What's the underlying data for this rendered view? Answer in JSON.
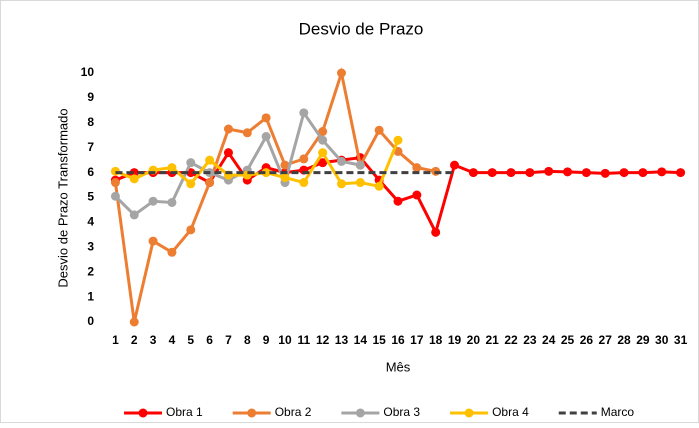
{
  "chart_data": {
    "type": "line",
    "title": "Desvio de Prazo",
    "x_label": "Mês",
    "y_label": "Desvio de Prazo Transformado",
    "categories": [
      1,
      2,
      3,
      4,
      5,
      6,
      7,
      8,
      9,
      10,
      11,
      12,
      13,
      14,
      15,
      16,
      17,
      18,
      19,
      20,
      21,
      22,
      23,
      24,
      25,
      26,
      27,
      28,
      29,
      30,
      31
    ],
    "ylim": [
      0,
      10
    ],
    "yticks": [
      0,
      1,
      2,
      3,
      4,
      5,
      6,
      7,
      8,
      9,
      10
    ],
    "grid": false,
    "legend": "bottom",
    "series": [
      {
        "name": "Obra 1",
        "color": "#ff0000",
        "markers": true,
        "dashed": false,
        "values": [
          5.7,
          6.0,
          6.0,
          6.0,
          6.0,
          5.6,
          6.8,
          5.7,
          6.2,
          6.0,
          6.1,
          6.4,
          6.5,
          6.6,
          5.7,
          4.85,
          5.1,
          3.6,
          6.3,
          6.0,
          6.0,
          6.0,
          6.0,
          6.05,
          6.03,
          6.0,
          5.97,
          6.0,
          6.0,
          6.03,
          6.0
        ]
      },
      {
        "name": "Obra 2",
        "color": "#ed7d31",
        "markers": true,
        "dashed": false,
        "values": [
          5.6,
          0,
          3.25,
          2.8,
          3.7,
          5.6,
          7.75,
          7.6,
          8.2,
          6.3,
          6.55,
          7.65,
          10,
          6.3,
          7.7,
          6.85,
          6.2,
          6.05,
          null,
          null,
          null,
          null,
          null,
          null,
          null,
          null,
          null,
          null,
          null,
          null,
          null
        ]
      },
      {
        "name": "Obra 3",
        "color": "#a5a5a5",
        "markers": true,
        "dashed": false,
        "values": [
          5.05,
          4.3,
          4.85,
          4.8,
          6.4,
          6.0,
          5.7,
          6.1,
          7.45,
          5.6,
          8.4,
          7.3,
          6.45,
          6.3,
          null,
          null,
          null,
          null,
          null,
          null,
          null,
          null,
          null,
          null,
          null,
          null,
          null,
          null,
          null,
          null,
          null
        ]
      },
      {
        "name": "Obra 4",
        "color": "#ffc000",
        "markers": true,
        "dashed": false,
        "values": [
          6.05,
          5.75,
          6.1,
          6.2,
          5.55,
          6.5,
          5.9,
          5.9,
          6.0,
          5.8,
          5.6,
          6.8,
          5.55,
          5.6,
          5.45,
          7.3,
          null,
          null,
          null,
          null,
          null,
          null,
          null,
          null,
          null,
          null,
          null,
          null,
          null,
          null,
          null
        ]
      },
      {
        "name": "Marco",
        "color": "#404040",
        "markers": false,
        "dashed": true,
        "values": [
          6,
          6,
          6,
          6,
          6,
          6,
          6,
          6,
          6,
          6,
          6,
          6,
          6,
          6,
          6,
          6,
          6,
          6,
          6,
          null,
          null,
          null,
          null,
          null,
          null,
          null,
          null,
          null,
          null,
          null,
          null
        ]
      }
    ]
  }
}
